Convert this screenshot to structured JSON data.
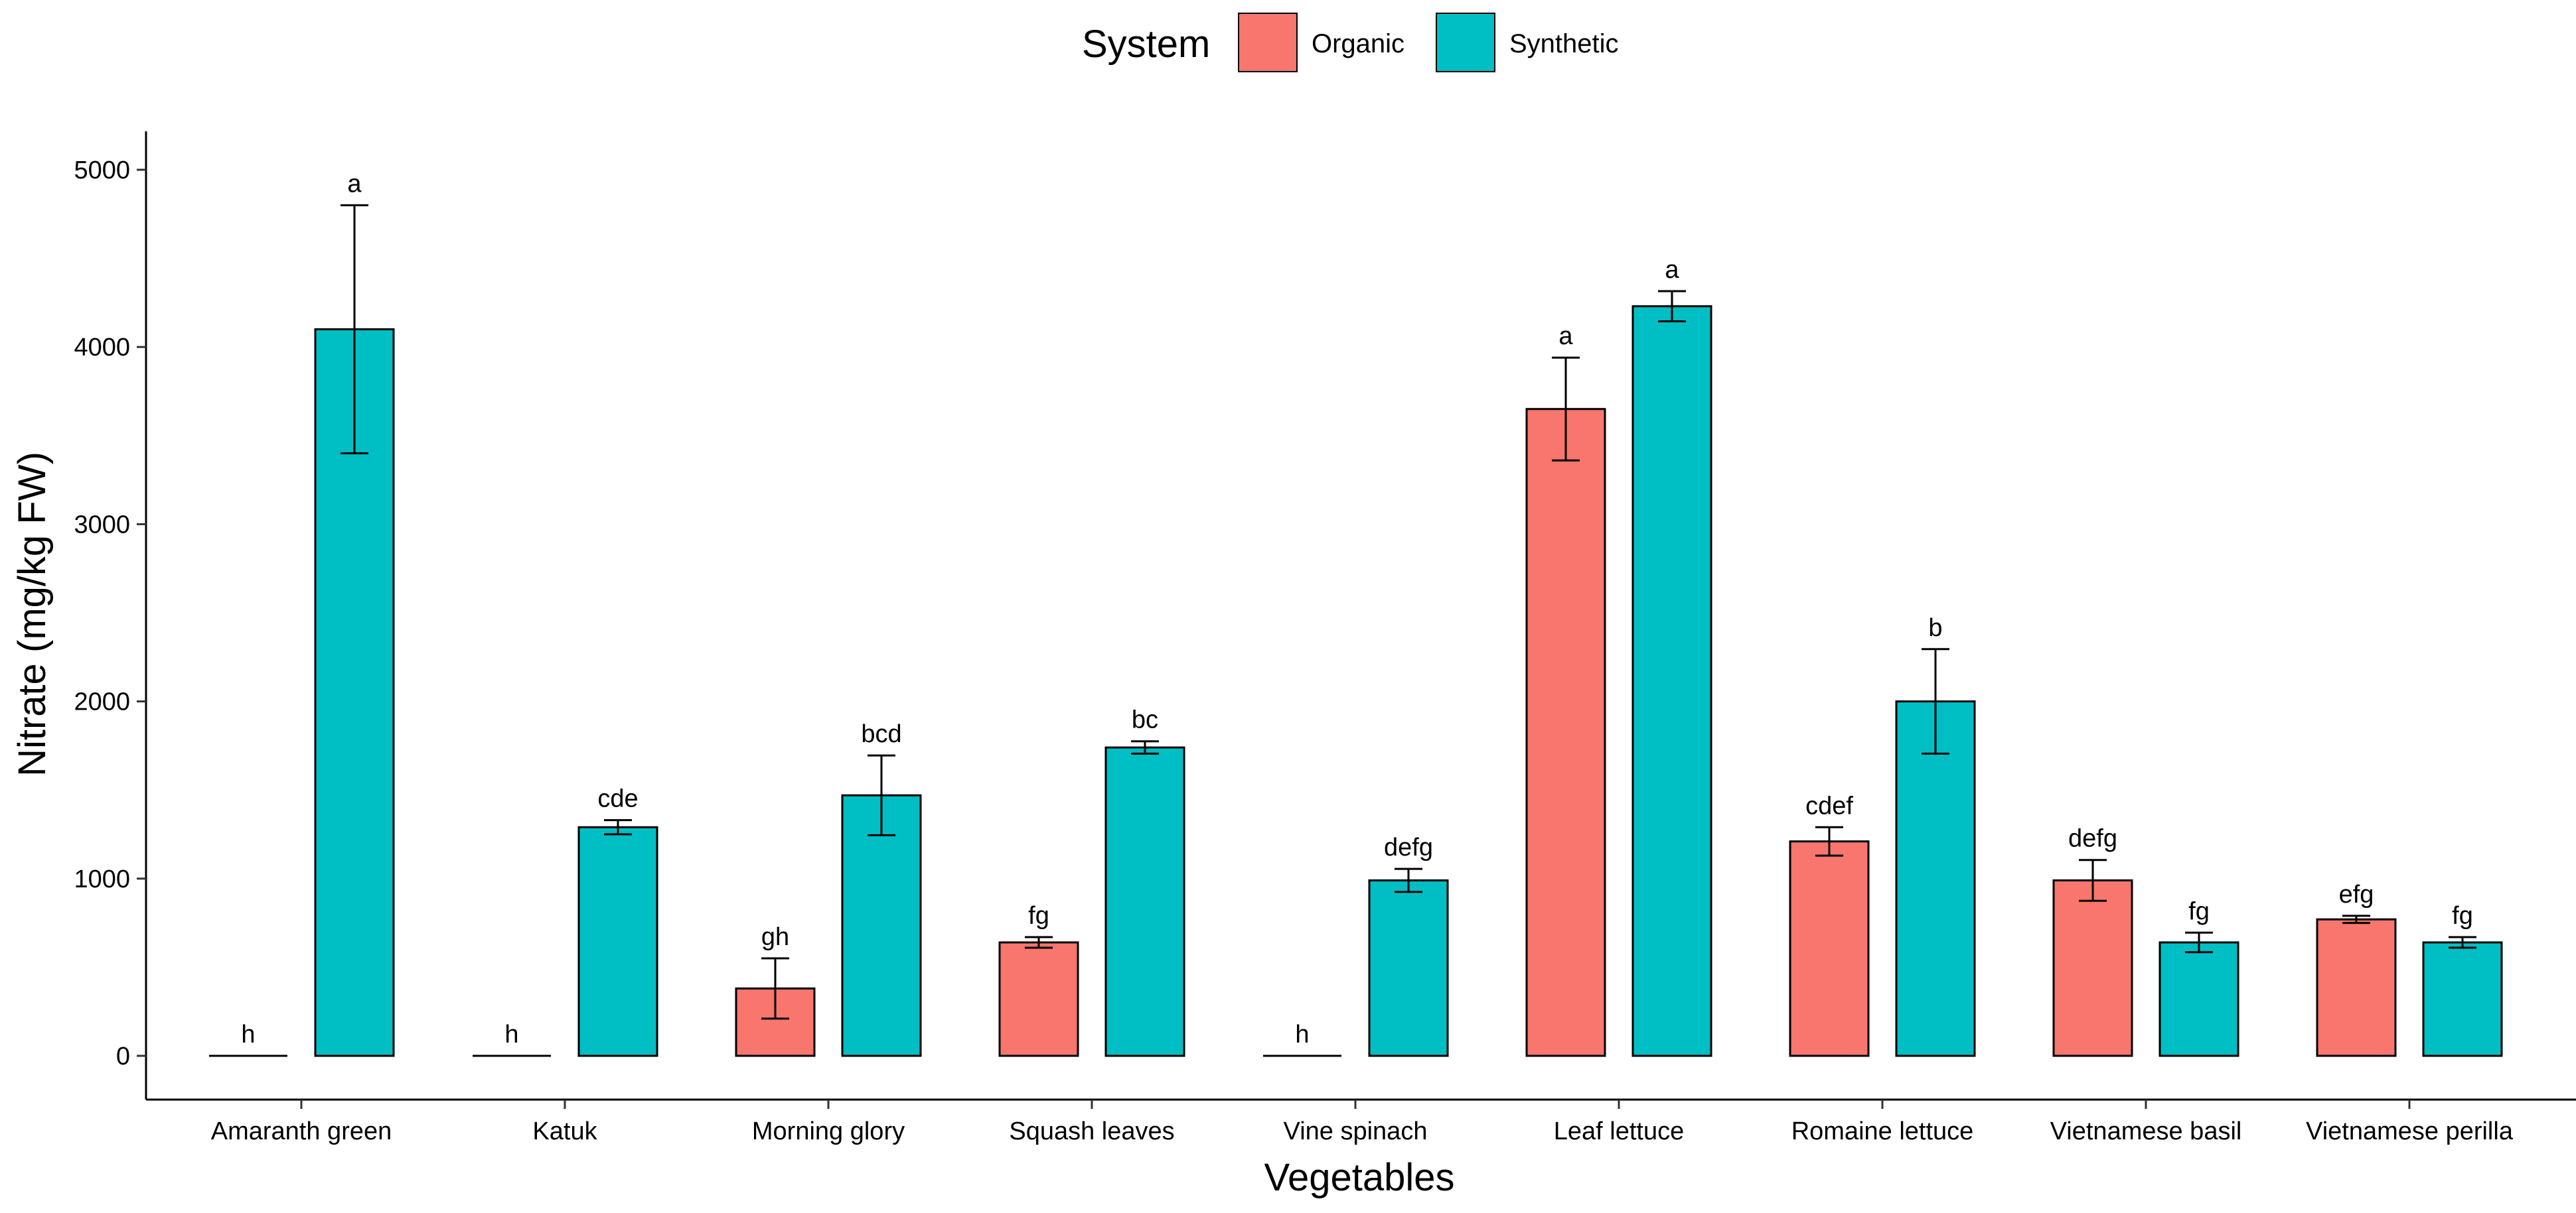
{
  "chart_data": {
    "type": "bar",
    "xlabel": "Vegetables",
    "ylabel": "Nitrate (mg/kg FW)",
    "ylim": [
      0,
      5200
    ],
    "yticks": [
      0,
      1000,
      2000,
      3000,
      4000,
      5000
    ],
    "legend": {
      "title": "System",
      "position": "top",
      "entries": [
        "Organic",
        "Synthetic"
      ]
    },
    "colors": {
      "Organic": "#F8766D",
      "Synthetic": "#00BFC4"
    },
    "categories": [
      "Amaranth green",
      "Katuk",
      "Morning glory",
      "Squash leaves",
      "Vine spinach",
      "Leaf lettuce",
      "Romaine lettuce",
      "Vietnamese basil",
      "Vietnamese perilla"
    ],
    "series": [
      {
        "name": "Organic",
        "values": [
          0,
          0,
          380,
          640,
          0,
          3650,
          1210,
          990,
          770
        ],
        "errors": [
          0,
          0,
          170,
          30,
          0,
          290,
          80,
          115,
          20
        ],
        "letters": [
          "h",
          "h",
          "gh",
          "fg",
          "h",
          "a",
          "cdef",
          "defg",
          "efg"
        ]
      },
      {
        "name": "Synthetic",
        "values": [
          4100,
          1290,
          1470,
          1740,
          990,
          4230,
          2000,
          640,
          640
        ],
        "errors": [
          700,
          40,
          225,
          35,
          65,
          85,
          295,
          55,
          30
        ],
        "letters": [
          "a",
          "cde",
          "bcd",
          "bc",
          "defg",
          "a",
          "b",
          "fg",
          "fg"
        ]
      }
    ]
  }
}
